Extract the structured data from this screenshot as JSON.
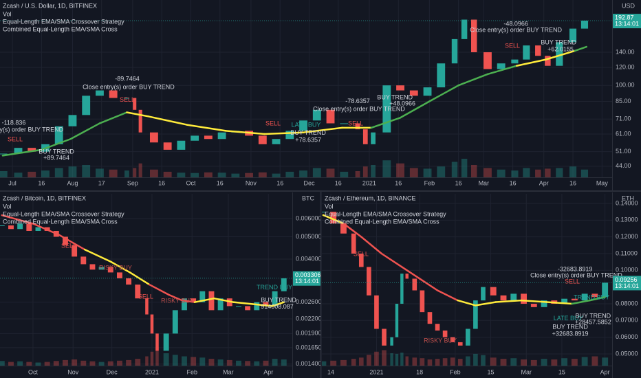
{
  "chart_data": [
    {
      "type": "candlestick",
      "title": "Zcash / U.S. Dollar, 1D, BITFINEX",
      "legend": [
        "Vol",
        "Equal-Length EMA/SMA Crossover Strategy",
        "Combined Equal-Length EMA/SMA Cross"
      ],
      "unit": "USD",
      "log_scale": true,
      "grid": true,
      "x": [
        -5,
        3,
        10,
        17,
        24,
        31,
        38,
        45,
        52,
        59,
        63,
        66,
        73,
        80,
        87,
        94,
        101,
        108,
        115,
        122,
        129,
        136,
        143,
        150,
        157,
        164,
        171,
        178,
        182,
        186,
        193,
        200,
        207,
        214,
        221,
        228,
        233,
        238,
        245,
        252,
        259,
        265,
        271,
        276,
        282,
        289,
        295
      ],
      "values": [
        50,
        53,
        51,
        55,
        66,
        74,
        90,
        95,
        88,
        88,
        78,
        62,
        56,
        52,
        57,
        60,
        58,
        62,
        63,
        60,
        55,
        58,
        63,
        70,
        78,
        68,
        68,
        64,
        55,
        62,
        100,
        95,
        90,
        98,
        125,
        160,
        195,
        140,
        118,
        125,
        130,
        150,
        135,
        122,
        155,
        178,
        193
      ],
      "volume": [
        20,
        15,
        18,
        22,
        30,
        35,
        40,
        28,
        25,
        22,
        30,
        45,
        25,
        18,
        15,
        14,
        16,
        15,
        12,
        14,
        16,
        12,
        18,
        22,
        30,
        28,
        18,
        20,
        35,
        40,
        55,
        45,
        30,
        28,
        35,
        50,
        60,
        40,
        30,
        25,
        22,
        30,
        25,
        28,
        30,
        35,
        25
      ],
      "ma": {
        "x": [
          -5,
          15,
          30,
          45,
          59,
          70,
          90,
          110,
          130,
          150,
          170,
          185,
          200,
          215,
          230,
          245,
          260,
          275,
          290,
          296
        ],
        "values": [
          49,
          52,
          58,
          68,
          76,
          73,
          67,
          63,
          61,
          62,
          65,
          65,
          72,
          85,
          100,
          112,
          122,
          130,
          142,
          148
        ],
        "colors": [
          "#4caf50",
          "#4caf50",
          "#4caf50",
          "#4caf50",
          "#4caf50",
          "#ffeb3b",
          "#ffeb3b",
          "#ffeb3b",
          "#ffeb3b",
          "#ffeb3b",
          "#ffeb3b",
          "#ffeb3b",
          "#4caf50",
          "#4caf50",
          "#4caf50",
          "#4caf50",
          "#4caf50",
          "#ffeb3b",
          "#ffeb3b",
          "#4caf50"
        ]
      },
      "up_color": "#26a69a",
      "down_color": "#ef5350",
      "price": 192.87,
      "countdown": "13:14:01",
      "price_color": "#26a69a",
      "xlim": [
        -6.4,
        309.2
      ],
      "xticks": [
        {
          "value": 0,
          "label": "Jul"
        },
        {
          "value": 15,
          "label": "16"
        },
        {
          "value": 31,
          "label": "Aug"
        },
        {
          "value": 46,
          "label": "17"
        },
        {
          "value": 62,
          "label": "Sep"
        },
        {
          "value": 77,
          "label": "16"
        },
        {
          "value": 92,
          "label": "Oct"
        },
        {
          "value": 107,
          "label": "16"
        },
        {
          "value": 123,
          "label": "Nov"
        },
        {
          "value": 138,
          "label": "16"
        },
        {
          "value": 153,
          "label": "Dec"
        },
        {
          "value": 168,
          "label": "16"
        },
        {
          "value": 184,
          "label": "2021"
        },
        {
          "value": 199,
          "label": "16"
        },
        {
          "value": 215,
          "label": "Feb"
        },
        {
          "value": 230,
          "label": "16"
        },
        {
          "value": 243,
          "label": "Mar"
        },
        {
          "value": 258,
          "label": "16"
        },
        {
          "value": 274,
          "label": "Apr"
        },
        {
          "value": 289,
          "label": "16"
        },
        {
          "value": 304,
          "label": "May"
        }
      ],
      "ylim": [
        39.3,
        238
      ],
      "yticks": [
        {
          "value": 44,
          "label": "44.00"
        },
        {
          "value": 51,
          "label": "51.00"
        },
        {
          "value": 61,
          "label": "61.00"
        },
        {
          "value": 71,
          "label": "71.00"
        },
        {
          "value": 85,
          "label": "85.00"
        },
        {
          "value": 100,
          "label": "100.00"
        },
        {
          "value": 120,
          "label": "120.00"
        },
        {
          "value": 140,
          "label": "140.00"
        }
      ],
      "annotations": [
        {
          "text": "-118.836",
          "x": 0.7,
          "y": 68.2,
          "color": "#d1d4dc"
        },
        {
          "text": "entry(s) order BUY TREND",
          "x": 7.1,
          "y": 63.6,
          "color": "#d1d4dc"
        },
        {
          "text": "SELL",
          "x": 1.4,
          "y": 57.7,
          "color": "#ef5350"
        },
        {
          "text": "BUY TREND",
          "x": 22.7,
          "y": 50.9,
          "color": "#d1d4dc"
        },
        {
          "text": "+89.7464",
          "x": 22.7,
          "y": 47.8,
          "color": "#d1d4dc"
        },
        {
          "text": "-89.7464",
          "x": 59.2,
          "y": 106.7,
          "color": "#d1d4dc"
        },
        {
          "text": "Close entry(s) order BUY TREND",
          "x": 59.9,
          "y": 98.1,
          "color": "#d1d4dc"
        },
        {
          "text": "SELL",
          "x": 59.2,
          "y": 86.0,
          "color": "#ef5350"
        },
        {
          "text": "SELL",
          "x": 134.4,
          "y": 67.8,
          "color": "#ef5350"
        },
        {
          "text": "LATE BUY",
          "x": 151.4,
          "y": 66.8,
          "color": "#26a69a"
        },
        {
          "text": "BUY TREND",
          "x": 152.5,
          "y": 61.5,
          "color": "#d1d4dc"
        },
        {
          "text": "+78.6357",
          "x": 152.5,
          "y": 57.3,
          "color": "#d1d4dc"
        },
        {
          "text": "-78.6357",
          "x": 178.0,
          "y": 84.8,
          "color": "#d1d4dc"
        },
        {
          "text": "Close entry(s) order BUY TREND",
          "x": 178.7,
          "y": 78.5,
          "color": "#d1d4dc"
        },
        {
          "text": "SELL",
          "x": 177.0,
          "y": 67.8,
          "color": "#ef5350"
        },
        {
          "text": "BUY TREND",
          "x": 197.2,
          "y": 88.3,
          "color": "#d1d4dc"
        },
        {
          "text": "+48.0966",
          "x": 201.1,
          "y": 83.0,
          "color": "#d1d4dc"
        },
        {
          "text": "-48.0966",
          "x": 259.6,
          "y": 186.4,
          "color": "#d1d4dc"
        },
        {
          "text": "Close entry(s) order BUY TREND",
          "x": 259.6,
          "y": 175.0,
          "color": "#d1d4dc"
        },
        {
          "text": "SELL",
          "x": 257.8,
          "y": 149.2,
          "color": "#ef5350"
        },
        {
          "text": "BUY TREND",
          "x": 281.6,
          "y": 154.5,
          "color": "#d1d4dc"
        },
        {
          "text": "+62.0155",
          "x": 282.6,
          "y": 144.0,
          "color": "#d1d4dc"
        }
      ]
    },
    {
      "type": "candlestick",
      "title": "Zcash / Bitcoin, 1D, BITFINEX",
      "legend": [
        "Vol",
        "Equal-Length EMA/SMA Crossover Strategy",
        "Combined Equal-Length EMA/SMA Cross"
      ],
      "unit": "BTC",
      "log_scale": true,
      "grid": true,
      "x": [
        -24,
        -17,
        -10,
        -3,
        4,
        11,
        18,
        25,
        32,
        39,
        46,
        53,
        60,
        67,
        74,
        81,
        88,
        92,
        96,
        103,
        110,
        117,
        124,
        131,
        138,
        145,
        152,
        159,
        166,
        173,
        180,
        187,
        194
      ],
      "values": [
        0.0056,
        0.0054,
        0.0057,
        0.0053,
        0.0055,
        0.0053,
        0.005,
        0.0046,
        0.0041,
        0.0038,
        0.0036,
        0.0037,
        0.0035,
        0.0033,
        0.0031,
        0.0027,
        0.0023,
        0.0019,
        0.0016,
        0.0019,
        0.0024,
        0.0027,
        0.0026,
        0.0029,
        0.0024,
        0.0027,
        0.0025,
        0.0025,
        0.0024,
        0.0026,
        0.0025,
        0.0029,
        0.0033
      ],
      "volume": [
        15,
        12,
        14,
        12,
        10,
        12,
        15,
        18,
        20,
        16,
        14,
        12,
        14,
        16,
        18,
        22,
        30,
        45,
        60,
        40,
        35,
        30,
        28,
        26,
        22,
        20,
        18,
        16,
        15,
        14,
        16,
        22,
        20
      ],
      "ma": {
        "x": [
          -24,
          0,
          20,
          40,
          60,
          75,
          90,
          105,
          115,
          125,
          140,
          155,
          170,
          185,
          194
        ],
        "values": [
          0.0062,
          0.0057,
          0.0051,
          0.0044,
          0.0039,
          0.0035,
          0.0031,
          0.0028,
          0.00265,
          0.0026,
          0.0027,
          0.0026,
          0.00255,
          0.0025,
          0.0026
        ],
        "colors": [
          "#ef5350",
          "#ef5350",
          "#ef5350",
          "#ef5350",
          "#ffeb3b",
          "#ffeb3b",
          "#ffeb3b",
          "#ef5350",
          "#ef5350",
          "#ef5350",
          "#ffeb3b",
          "#ffeb3b",
          "#ffeb3b",
          "#ffeb3b",
          "#ffeb3b"
        ]
      },
      "up_color": "#26a69a",
      "down_color": "#ef5350",
      "price": 0.003306,
      "countdown": "13:14:01",
      "price_color": "#26a69a",
      "xlim": [
        -25.5,
        200.5
      ],
      "xticks": [
        {
          "value": 0,
          "label": "Oct"
        },
        {
          "value": 31,
          "label": "Nov"
        },
        {
          "value": 61,
          "label": "Dec"
        },
        {
          "value": 92,
          "label": "2021"
        },
        {
          "value": 123,
          "label": "Feb"
        },
        {
          "value": 151,
          "label": "Mar"
        },
        {
          "value": 182,
          "label": "Apr"
        }
      ],
      "ylim": [
        0.001379,
        0.00768
      ],
      "yticks": [
        {
          "value": 0.0014,
          "label": "0.001400"
        },
        {
          "value": 0.00165,
          "label": "0.001650"
        },
        {
          "value": 0.0019,
          "label": "0.001900"
        },
        {
          "value": 0.0022,
          "label": "0.002200"
        },
        {
          "value": 0.0026,
          "label": "0.002600"
        },
        {
          "value": 0.004,
          "label": "0.004000"
        },
        {
          "value": 0.005,
          "label": "0.005000"
        },
        {
          "value": 0.006,
          "label": "0.006000"
        }
      ],
      "annotations": [
        {
          "text": "SELL",
          "x": 27.7,
          "y": 0.00456,
          "color": "#ef5350"
        },
        {
          "text": "RISKY BUY",
          "x": 63.8,
          "y": 0.00366,
          "color": "#c0504d"
        },
        {
          "text": "SELL",
          "x": 87.2,
          "y": 0.00274,
          "color": "#ef5350"
        },
        {
          "text": "RISKY BUY",
          "x": 111.7,
          "y": 0.00263,
          "color": "#c0504d"
        },
        {
          "text": "TREND BUY",
          "x": 186.7,
          "y": 0.003,
          "color": "#26a69a"
        },
        {
          "text": "BUY TREND",
          "x": 189.9,
          "y": 0.00265,
          "color": "#d1d4dc"
        },
        {
          "text": "914008.087",
          "x": 188.8,
          "y": 0.00248,
          "color": "#d1d4dc"
        }
      ]
    },
    {
      "type": "candlestick",
      "title": "Zcash / Ethereum, 1D, BINANCE",
      "legend": [
        "Vol",
        "Equal-Length EMA/SMA Crossover Strategy",
        "Combined Equal-Length EMA/SMA Cross"
      ],
      "unit": "ETH",
      "log_scale": false,
      "grid": true,
      "x": [
        -3,
        1,
        5,
        9,
        12,
        15,
        18,
        21,
        24,
        26,
        28,
        30,
        33,
        36,
        39,
        42,
        45,
        48,
        51,
        54,
        57,
        60,
        64,
        68,
        72,
        76,
        80,
        84,
        88,
        92,
        96,
        100,
        104,
        108
      ],
      "values": [
        0.135,
        0.128,
        0.122,
        0.11,
        0.102,
        0.085,
        0.065,
        0.055,
        0.06,
        0.08,
        0.098,
        0.095,
        0.088,
        0.075,
        0.068,
        0.064,
        0.06,
        0.057,
        0.055,
        0.065,
        0.082,
        0.09,
        0.085,
        0.082,
        0.086,
        0.08,
        0.078,
        0.082,
        0.08,
        0.083,
        0.082,
        0.086,
        0.084,
        0.0926
      ],
      "volume": [
        14,
        16,
        18,
        22,
        26,
        35,
        45,
        50,
        40,
        38,
        42,
        30,
        26,
        24,
        20,
        22,
        24,
        26,
        22,
        30,
        38,
        34,
        26,
        22,
        24,
        20,
        18,
        22,
        20,
        24,
        22,
        28,
        30,
        26
      ],
      "ma": {
        "x": [
          -3,
          5,
          12,
          20,
          28,
          35,
          42,
          50,
          57,
          65,
          75,
          85,
          95,
          102,
          108
        ],
        "values": [
          0.133,
          0.128,
          0.12,
          0.11,
          0.102,
          0.095,
          0.088,
          0.082,
          0.079,
          0.081,
          0.082,
          0.081,
          0.08,
          0.082,
          0.084
        ],
        "colors": [
          "#ffeb3b",
          "#ffeb3b",
          "#ef5350",
          "#ef5350",
          "#ef5350",
          "#ef5350",
          "#ef5350",
          "#ef5350",
          "#ffeb3b",
          "#ffeb3b",
          "#ffeb3b",
          "#ffeb3b",
          "#ffeb3b",
          "#4caf50",
          "#4caf50"
        ]
      },
      "up_color": "#26a69a",
      "down_color": "#ef5350",
      "price": 0.09256,
      "countdown": "13:14:01",
      "price_color": "#26a69a",
      "xlim": [
        -3.52,
        110.8
      ],
      "xticks": [
        {
          "value": 0,
          "label": "14"
        },
        {
          "value": 18,
          "label": "2021"
        },
        {
          "value": 35,
          "label": "18"
        },
        {
          "value": 49,
          "label": "Feb"
        },
        {
          "value": 63,
          "label": "15"
        },
        {
          "value": 77,
          "label": "Mar"
        },
        {
          "value": 91,
          "label": "15"
        },
        {
          "value": 108,
          "label": "Apr"
        }
      ],
      "ylim": [
        0.043,
        0.14575
      ],
      "yticks": [
        {
          "value": 0.05,
          "label": "0.05000"
        },
        {
          "value": 0.06,
          "label": "0.06000"
        },
        {
          "value": 0.07,
          "label": "0.07000"
        },
        {
          "value": 0.08,
          "label": "0.08000"
        },
        {
          "value": 0.1,
          "label": "0.10000"
        },
        {
          "value": 0.11,
          "label": "0.11000"
        },
        {
          "value": 0.12,
          "label": "0.12000"
        },
        {
          "value": 0.13,
          "label": "0.13000"
        },
        {
          "value": 0.14,
          "label": "0.14000"
        }
      ],
      "annotations": [
        {
          "text": "SELL",
          "x": 11.9,
          "y": 0.1096,
          "color": "#ef5350"
        },
        {
          "text": "RISKY BUY",
          "x": 43.1,
          "y": 0.0578,
          "color": "#c0504d"
        },
        {
          "text": "-32683.8919",
          "x": 96.2,
          "y": 0.1005,
          "color": "#d1d4dc"
        },
        {
          "text": "Close entry(s) order BUY TREND",
          "x": 96.7,
          "y": 0.0968,
          "color": "#d1d4dc"
        },
        {
          "text": "SELL",
          "x": 95.1,
          "y": 0.0931,
          "color": "#ef5350"
        },
        {
          "text": "TREND BUY",
          "x": 102.7,
          "y": 0.0837,
          "color": "#26a69a"
        },
        {
          "text": "LATE BUY",
          "x": 93.5,
          "y": 0.071,
          "color": "#26a69a"
        },
        {
          "text": "BUY TREND",
          "x": 94.3,
          "y": 0.066,
          "color": "#d1d4dc"
        },
        {
          "text": "+32683.8919",
          "x": 94.3,
          "y": 0.0619,
          "color": "#d1d4dc"
        },
        {
          "text": "BUY TREND",
          "x": 103.3,
          "y": 0.0726,
          "color": "#d1d4dc"
        },
        {
          "text": "+28457.5852",
          "x": 103.3,
          "y": 0.0689,
          "color": "#d1d4dc"
        }
      ]
    }
  ]
}
